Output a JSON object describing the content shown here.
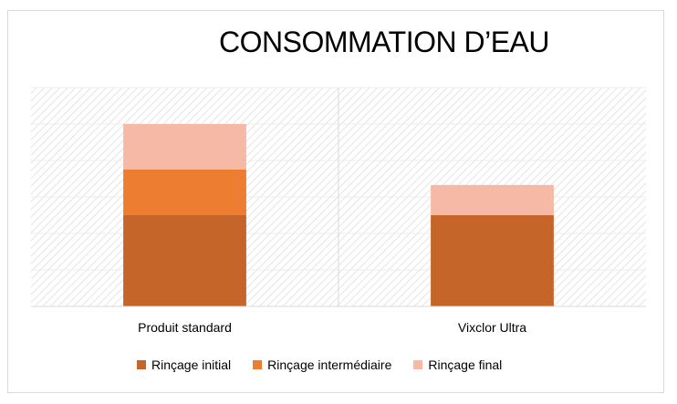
{
  "chart_data": {
    "type": "bar",
    "stacked": true,
    "title": "CONSOMMATION D’EAU",
    "categories": [
      "Produit standard",
      "Vixclor Ultra"
    ],
    "series": [
      {
        "name": "Rinçage initial",
        "color": "#c5652a",
        "values": [
          2.5,
          2.5
        ]
      },
      {
        "name": "Rinçage intermédiaire",
        "color": "#ed7d31",
        "values": [
          1.25,
          0
        ]
      },
      {
        "name": "Rinçage final",
        "color": "#f6b9a5",
        "values": [
          1.25,
          0.83
        ]
      }
    ],
    "ylim": [
      0,
      6
    ],
    "grid": true,
    "legend_position": "bottom"
  }
}
